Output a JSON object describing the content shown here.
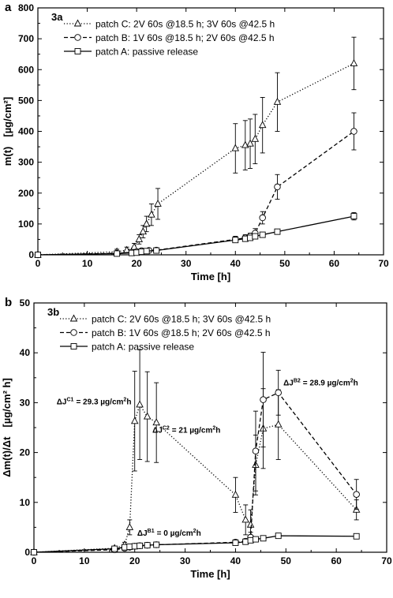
{
  "chart_data": [
    {
      "panel_letter": "a",
      "panel_title": "3a",
      "type": "line",
      "xlabel": "Time [h]",
      "ylabel": "m(t) [µg/cm²]",
      "ylabel_main": "m(t)",
      "ylabel_unit": "[µg/cm²]",
      "xlim": [
        0,
        70
      ],
      "ylim": [
        0,
        800
      ],
      "xticks": [
        0,
        10,
        20,
        30,
        40,
        50,
        60,
        70
      ],
      "yticks": [
        0,
        100,
        200,
        300,
        400,
        500,
        600,
        700,
        800
      ],
      "legend_position": "top-left",
      "series": [
        {
          "name": "patch C: 2V 60s @18.5 h; 3V 60s @42.5 h",
          "marker": "triangle",
          "dash": "dotted",
          "x": [
            0,
            16,
            18,
            19.5,
            20.5,
            21.3,
            22,
            23,
            24.3,
            40,
            42,
            43,
            44,
            45.5,
            48.5,
            64
          ],
          "y": [
            0,
            10,
            15,
            25,
            50,
            75,
            100,
            130,
            165,
            345,
            355,
            360,
            375,
            420,
            495,
            620
          ],
          "err": [
            0,
            8,
            10,
            12,
            15,
            20,
            25,
            35,
            50,
            80,
            80,
            80,
            80,
            90,
            95,
            85
          ]
        },
        {
          "name": "patch B: 1V 60s @18.5 h; 2V 60s @42.5 h",
          "marker": "circle",
          "dash": "dashed",
          "x": [
            0,
            16,
            19,
            20,
            21,
            22.5,
            24,
            40,
            42,
            43,
            44,
            45.5,
            48.5,
            64
          ],
          "y": [
            0,
            5,
            8,
            10,
            13,
            14,
            15,
            50,
            55,
            60,
            70,
            120,
            220,
            400
          ],
          "err": [
            0,
            5,
            5,
            5,
            5,
            5,
            5,
            10,
            10,
            10,
            15,
            20,
            40,
            60
          ]
        },
        {
          "name": "patch A: passive release",
          "marker": "square",
          "dash": "solid",
          "x": [
            0,
            16,
            19,
            20,
            21,
            22,
            24,
            40,
            42,
            43,
            44,
            45.5,
            48.5,
            64
          ],
          "y": [
            0,
            4,
            6,
            7,
            10,
            12,
            14,
            48,
            52,
            55,
            60,
            65,
            75,
            125
          ],
          "err": [
            0,
            3,
            3,
            3,
            3,
            3,
            3,
            8,
            8,
            8,
            8,
            8,
            8,
            12
          ]
        }
      ]
    },
    {
      "panel_letter": "b",
      "panel_title": "3b",
      "type": "line",
      "xlabel": "Time [h]",
      "ylabel": "Δm(t)/Δt [µg/cm² h]",
      "ylabel_main": "Δm(t)/Δt",
      "ylabel_unit": "[µg/cm² h]",
      "xlim": [
        0,
        70
      ],
      "ylim": [
        0,
        50
      ],
      "xticks": [
        0,
        10,
        20,
        30,
        40,
        50,
        60,
        70
      ],
      "yticks": [
        0,
        10,
        20,
        30,
        40,
        50
      ],
      "legend_position": "top-left",
      "series": [
        {
          "name": "patch C: 2V 60s @18.5 h; 3V 60s @42.5 h",
          "marker": "triangle",
          "dash": "dotted",
          "x": [
            0,
            16,
            18,
            19,
            20,
            21,
            22.5,
            24.3,
            40,
            42,
            43,
            44,
            45.5,
            48.5,
            64
          ],
          "y": [
            0,
            0.8,
            1.5,
            5,
            26.3,
            29.6,
            27.2,
            26,
            11.5,
            6.5,
            5.5,
            17.5,
            24.8,
            25.6,
            8.5
          ],
          "err": [
            0,
            0.3,
            0.5,
            1.5,
            10,
            11,
            9,
            8,
            3.5,
            3,
            3,
            6,
            8,
            7,
            2
          ]
        },
        {
          "name": "patch B: 1V 60s @18.5 h; 2V 60s @42.5 h",
          "marker": "circle",
          "dash": "dashed",
          "x": [
            0,
            16,
            18,
            19,
            20,
            21,
            22.5,
            24.3,
            40,
            42,
            43,
            44,
            45.5,
            48.5,
            64
          ],
          "y": [
            0,
            0.5,
            0.8,
            1,
            1.2,
            1.3,
            1.4,
            1.5,
            2,
            2.2,
            3,
            20.3,
            30.6,
            32,
            11.6
          ],
          "err": [
            0,
            0.2,
            0.2,
            0.2,
            0.2,
            0.2,
            0.2,
            0.3,
            0.5,
            0.5,
            1,
            8,
            9.5,
            4.5,
            3
          ]
        },
        {
          "name": "patch A: passive release",
          "marker": "square",
          "dash": "solid",
          "x": [
            0,
            16,
            18,
            19,
            20,
            21,
            22.5,
            24.3,
            40,
            42,
            43,
            44,
            45.5,
            48.5,
            64
          ],
          "y": [
            0,
            0.7,
            1,
            1.1,
            1.2,
            1.3,
            1.4,
            1.5,
            1.9,
            2.1,
            2.4,
            2.6,
            2.8,
            3.3,
            3.2
          ],
          "err": [
            0,
            0.2,
            0.2,
            0.2,
            0.2,
            0.2,
            0.2,
            0.2,
            0.3,
            0.3,
            0.3,
            0.3,
            0.3,
            0.4,
            0.4
          ]
        }
      ],
      "annotations": [
        {
          "base": "ΔJ",
          "sup": "C1",
          "rest": "= 29.3 µg/cm",
          "sup2": "2",
          "tail": "h",
          "x": 4.5,
          "y": 29.7
        },
        {
          "base": "ΔJ",
          "sup": "C2",
          "rest": "= 21 µg/cm",
          "sup2": "2",
          "tail": "h",
          "x": 23.5,
          "y": 24
        },
        {
          "base": "ΔJ",
          "sup": "B1",
          "rest": "= 0 µg/cm",
          "sup2": "2",
          "tail": "h",
          "x": 20.5,
          "y": 3.3
        },
        {
          "base": "ΔJ",
          "sup": "B2",
          "rest": "= 28.9 µg/cm",
          "sup2": "2",
          "tail": "h",
          "x": 49.5,
          "y": 33.5
        }
      ]
    }
  ]
}
